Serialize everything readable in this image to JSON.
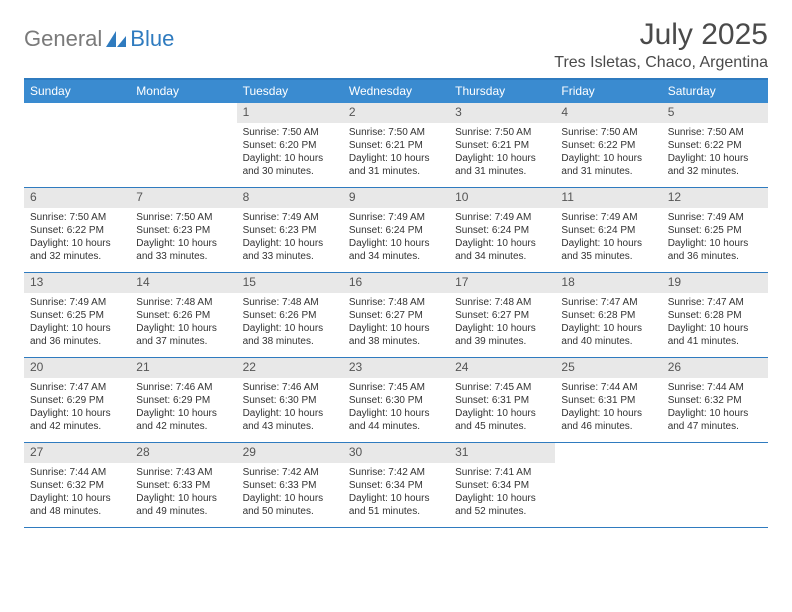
{
  "logo": {
    "word1": "General",
    "word2": "Blue"
  },
  "title": "July 2025",
  "location": "Tres Isletas, Chaco, Argentina",
  "colors": {
    "header_bg": "#3a8bd0",
    "header_text": "#ffffff",
    "border": "#2f7bbf",
    "daynum_bg": "#e8e8e8",
    "body_text": "#333333",
    "logo_gray": "#7a7a7a",
    "logo_blue": "#2f7bbf"
  },
  "day_headers": [
    "Sunday",
    "Monday",
    "Tuesday",
    "Wednesday",
    "Thursday",
    "Friday",
    "Saturday"
  ],
  "weeks": [
    [
      {
        "n": "",
        "sr": "",
        "ss": "",
        "dl": ""
      },
      {
        "n": "",
        "sr": "",
        "ss": "",
        "dl": ""
      },
      {
        "n": "1",
        "sr": "Sunrise: 7:50 AM",
        "ss": "Sunset: 6:20 PM",
        "dl": "Daylight: 10 hours and 30 minutes."
      },
      {
        "n": "2",
        "sr": "Sunrise: 7:50 AM",
        "ss": "Sunset: 6:21 PM",
        "dl": "Daylight: 10 hours and 31 minutes."
      },
      {
        "n": "3",
        "sr": "Sunrise: 7:50 AM",
        "ss": "Sunset: 6:21 PM",
        "dl": "Daylight: 10 hours and 31 minutes."
      },
      {
        "n": "4",
        "sr": "Sunrise: 7:50 AM",
        "ss": "Sunset: 6:22 PM",
        "dl": "Daylight: 10 hours and 31 minutes."
      },
      {
        "n": "5",
        "sr": "Sunrise: 7:50 AM",
        "ss": "Sunset: 6:22 PM",
        "dl": "Daylight: 10 hours and 32 minutes."
      }
    ],
    [
      {
        "n": "6",
        "sr": "Sunrise: 7:50 AM",
        "ss": "Sunset: 6:22 PM",
        "dl": "Daylight: 10 hours and 32 minutes."
      },
      {
        "n": "7",
        "sr": "Sunrise: 7:50 AM",
        "ss": "Sunset: 6:23 PM",
        "dl": "Daylight: 10 hours and 33 minutes."
      },
      {
        "n": "8",
        "sr": "Sunrise: 7:49 AM",
        "ss": "Sunset: 6:23 PM",
        "dl": "Daylight: 10 hours and 33 minutes."
      },
      {
        "n": "9",
        "sr": "Sunrise: 7:49 AM",
        "ss": "Sunset: 6:24 PM",
        "dl": "Daylight: 10 hours and 34 minutes."
      },
      {
        "n": "10",
        "sr": "Sunrise: 7:49 AM",
        "ss": "Sunset: 6:24 PM",
        "dl": "Daylight: 10 hours and 34 minutes."
      },
      {
        "n": "11",
        "sr": "Sunrise: 7:49 AM",
        "ss": "Sunset: 6:24 PM",
        "dl": "Daylight: 10 hours and 35 minutes."
      },
      {
        "n": "12",
        "sr": "Sunrise: 7:49 AM",
        "ss": "Sunset: 6:25 PM",
        "dl": "Daylight: 10 hours and 36 minutes."
      }
    ],
    [
      {
        "n": "13",
        "sr": "Sunrise: 7:49 AM",
        "ss": "Sunset: 6:25 PM",
        "dl": "Daylight: 10 hours and 36 minutes."
      },
      {
        "n": "14",
        "sr": "Sunrise: 7:48 AM",
        "ss": "Sunset: 6:26 PM",
        "dl": "Daylight: 10 hours and 37 minutes."
      },
      {
        "n": "15",
        "sr": "Sunrise: 7:48 AM",
        "ss": "Sunset: 6:26 PM",
        "dl": "Daylight: 10 hours and 38 minutes."
      },
      {
        "n": "16",
        "sr": "Sunrise: 7:48 AM",
        "ss": "Sunset: 6:27 PM",
        "dl": "Daylight: 10 hours and 38 minutes."
      },
      {
        "n": "17",
        "sr": "Sunrise: 7:48 AM",
        "ss": "Sunset: 6:27 PM",
        "dl": "Daylight: 10 hours and 39 minutes."
      },
      {
        "n": "18",
        "sr": "Sunrise: 7:47 AM",
        "ss": "Sunset: 6:28 PM",
        "dl": "Daylight: 10 hours and 40 minutes."
      },
      {
        "n": "19",
        "sr": "Sunrise: 7:47 AM",
        "ss": "Sunset: 6:28 PM",
        "dl": "Daylight: 10 hours and 41 minutes."
      }
    ],
    [
      {
        "n": "20",
        "sr": "Sunrise: 7:47 AM",
        "ss": "Sunset: 6:29 PM",
        "dl": "Daylight: 10 hours and 42 minutes."
      },
      {
        "n": "21",
        "sr": "Sunrise: 7:46 AM",
        "ss": "Sunset: 6:29 PM",
        "dl": "Daylight: 10 hours and 42 minutes."
      },
      {
        "n": "22",
        "sr": "Sunrise: 7:46 AM",
        "ss": "Sunset: 6:30 PM",
        "dl": "Daylight: 10 hours and 43 minutes."
      },
      {
        "n": "23",
        "sr": "Sunrise: 7:45 AM",
        "ss": "Sunset: 6:30 PM",
        "dl": "Daylight: 10 hours and 44 minutes."
      },
      {
        "n": "24",
        "sr": "Sunrise: 7:45 AM",
        "ss": "Sunset: 6:31 PM",
        "dl": "Daylight: 10 hours and 45 minutes."
      },
      {
        "n": "25",
        "sr": "Sunrise: 7:44 AM",
        "ss": "Sunset: 6:31 PM",
        "dl": "Daylight: 10 hours and 46 minutes."
      },
      {
        "n": "26",
        "sr": "Sunrise: 7:44 AM",
        "ss": "Sunset: 6:32 PM",
        "dl": "Daylight: 10 hours and 47 minutes."
      }
    ],
    [
      {
        "n": "27",
        "sr": "Sunrise: 7:44 AM",
        "ss": "Sunset: 6:32 PM",
        "dl": "Daylight: 10 hours and 48 minutes."
      },
      {
        "n": "28",
        "sr": "Sunrise: 7:43 AM",
        "ss": "Sunset: 6:33 PM",
        "dl": "Daylight: 10 hours and 49 minutes."
      },
      {
        "n": "29",
        "sr": "Sunrise: 7:42 AM",
        "ss": "Sunset: 6:33 PM",
        "dl": "Daylight: 10 hours and 50 minutes."
      },
      {
        "n": "30",
        "sr": "Sunrise: 7:42 AM",
        "ss": "Sunset: 6:34 PM",
        "dl": "Daylight: 10 hours and 51 minutes."
      },
      {
        "n": "31",
        "sr": "Sunrise: 7:41 AM",
        "ss": "Sunset: 6:34 PM",
        "dl": "Daylight: 10 hours and 52 minutes."
      },
      {
        "n": "",
        "sr": "",
        "ss": "",
        "dl": ""
      },
      {
        "n": "",
        "sr": "",
        "ss": "",
        "dl": ""
      }
    ]
  ]
}
